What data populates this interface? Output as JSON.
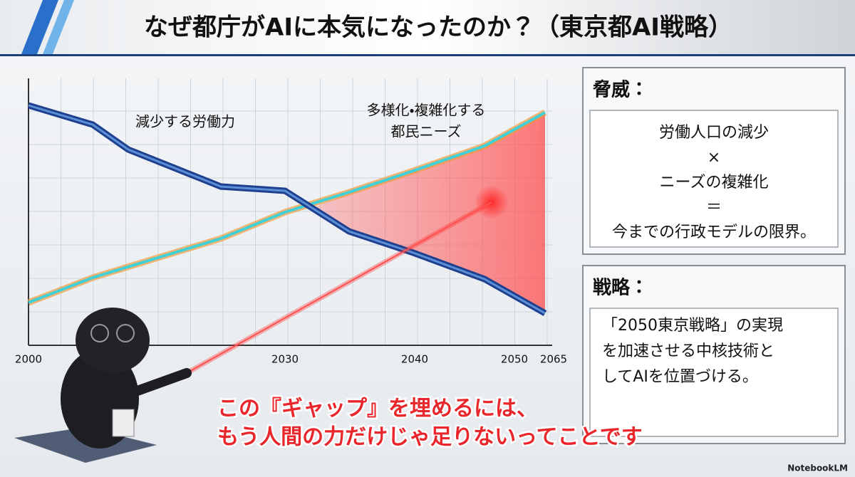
{
  "title": "なぜ都庁がAIに本気になったのか？（東京都AI戦略）",
  "chart": {
    "workforce_label": "減少する労働力",
    "needs_label": [
      "多様化・複雑化する",
      "都民ニーズ"
    ],
    "x_labels": [
      "2000",
      "2030",
      "2040",
      "2050",
      "2065"
    ]
  },
  "panels": [
    {
      "heading": "脅威：",
      "lines": [
        "労働人口の減少",
        "×",
        "ニーズの複雑化",
        "＝",
        "今までの行政モデルの限界。"
      ]
    },
    {
      "heading": "戦略：",
      "lines": [
        "「2050東京戦略」の実現",
        "を加速させる中核技術と",
        "してAIを位置づける。"
      ]
    }
  ],
  "caption": [
    "この『ギャップ』を埋めるには、",
    "もう人間の力だけじゃ足りないってことです"
  ],
  "logo": "NotebookLM"
}
